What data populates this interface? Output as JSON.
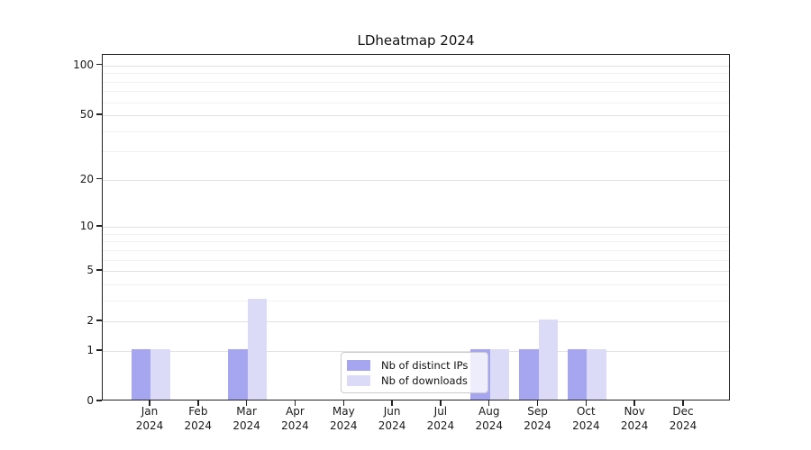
{
  "chart_data": {
    "type": "bar",
    "title": "LDheatmap 2024",
    "categories": [
      "Jan",
      "Feb",
      "Mar",
      "Apr",
      "May",
      "Jun",
      "Jul",
      "Aug",
      "Sep",
      "Oct",
      "Nov",
      "Dec"
    ],
    "category_year": "2024",
    "series": [
      {
        "name": "Nb of distinct IPs",
        "color": "#a5a5f0",
        "values": [
          1,
          0,
          1,
          0,
          0,
          0,
          0,
          1,
          1,
          1,
          0,
          0
        ]
      },
      {
        "name": "Nb of downloads",
        "color": "#dbdbf8",
        "values": [
          1,
          0,
          3,
          0,
          0,
          0,
          0,
          1,
          2,
          1,
          0,
          0
        ]
      }
    ],
    "y_axis": {
      "scale": "log1p",
      "tick_values": [
        0,
        1,
        2,
        5,
        10,
        20,
        50,
        100
      ],
      "minor_gridline_values": [
        3,
        4,
        6,
        7,
        8,
        9,
        30,
        40,
        60,
        70,
        80,
        90
      ]
    },
    "legend": {
      "position": "lower center"
    },
    "grid": "horizontal",
    "colors": {
      "axis_frame": "#222222",
      "major_grid": "#e2e2e2",
      "minor_grid": "#f1f1f1",
      "text": "#1a1a1a",
      "legend_border": "#cbcbcb"
    }
  }
}
